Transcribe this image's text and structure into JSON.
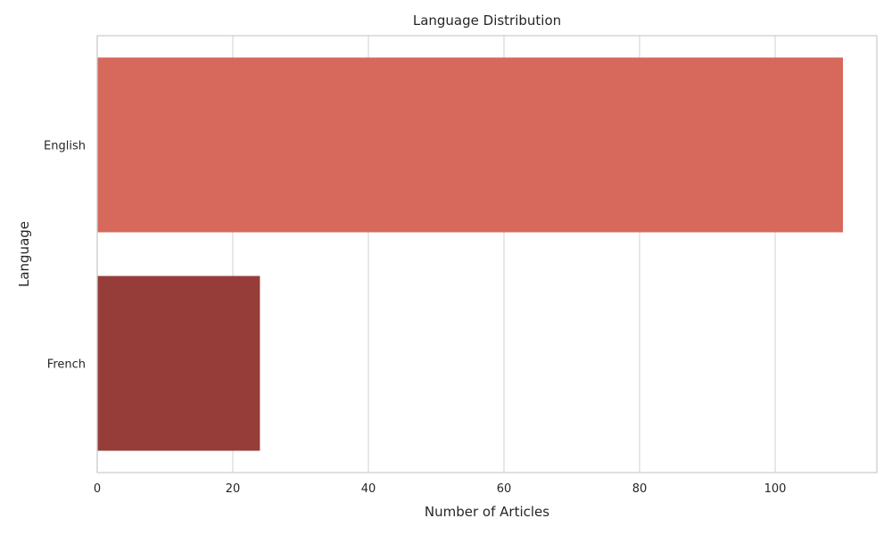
{
  "chart_data": {
    "type": "bar",
    "orientation": "horizontal",
    "title": "Language Distribution",
    "xlabel": "Number of Articles",
    "ylabel": "Language",
    "categories": [
      "English",
      "French"
    ],
    "values": [
      110,
      24
    ],
    "colors": [
      "#d6685c",
      "#963d3a"
    ],
    "xlim": [
      0,
      115
    ],
    "xticks": [
      0,
      20,
      40,
      60,
      80,
      100
    ],
    "grid": true
  }
}
